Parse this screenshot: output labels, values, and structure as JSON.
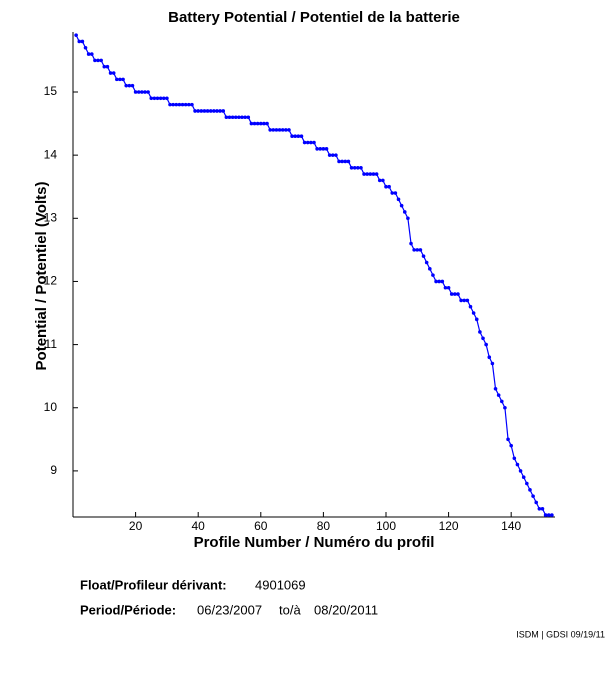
{
  "chart_data": {
    "type": "line",
    "title": "Battery Potential / Potentiel de la batterie",
    "xlabel": "Profile Number / Numéro du profil",
    "ylabel": "Potential / Potentiel (Volts)",
    "xlim": [
      0,
      154
    ],
    "ylim": [
      8.27,
      15.95
    ],
    "xticks": [
      20,
      40,
      60,
      80,
      100,
      120,
      140
    ],
    "yticks": [
      9,
      10,
      11,
      12,
      13,
      14,
      15
    ],
    "grid": false,
    "series": [
      {
        "color": "#0000ff",
        "x": [
          1,
          2,
          3,
          4,
          5,
          6,
          7,
          8,
          9,
          10,
          11,
          12,
          13,
          14,
          15,
          16,
          17,
          18,
          19,
          20,
          21,
          22,
          23,
          24,
          25,
          26,
          27,
          28,
          29,
          30,
          31,
          32,
          33,
          34,
          35,
          36,
          37,
          38,
          39,
          40,
          41,
          42,
          43,
          44,
          45,
          46,
          47,
          48,
          49,
          50,
          51,
          52,
          53,
          54,
          55,
          56,
          57,
          58,
          59,
          60,
          61,
          62,
          63,
          64,
          65,
          66,
          67,
          68,
          69,
          70,
          71,
          72,
          73,
          74,
          75,
          76,
          77,
          78,
          79,
          80,
          81,
          82,
          83,
          84,
          85,
          86,
          87,
          88,
          89,
          90,
          91,
          92,
          93,
          94,
          95,
          96,
          97,
          98,
          99,
          100,
          101,
          102,
          103,
          104,
          105,
          106,
          107,
          108,
          109,
          110,
          111,
          112,
          113,
          114,
          115,
          116,
          117,
          118,
          119,
          120,
          121,
          122,
          123,
          124,
          125,
          126,
          127,
          128,
          129,
          130,
          131,
          132,
          133,
          134,
          135,
          136,
          137,
          138,
          139,
          140,
          141,
          142,
          143,
          144,
          145,
          146,
          147,
          148,
          149,
          150,
          151,
          152,
          153
        ],
        "values": [
          15.9,
          15.8,
          15.8,
          15.7,
          15.6,
          15.6,
          15.5,
          15.5,
          15.5,
          15.4,
          15.4,
          15.3,
          15.3,
          15.2,
          15.2,
          15.2,
          15.1,
          15.1,
          15.1,
          15.0,
          15.0,
          15.0,
          15.0,
          15.0,
          14.9,
          14.9,
          14.9,
          14.9,
          14.9,
          14.9,
          14.8,
          14.8,
          14.8,
          14.8,
          14.8,
          14.8,
          14.8,
          14.8,
          14.7,
          14.7,
          14.7,
          14.7,
          14.7,
          14.7,
          14.7,
          14.7,
          14.7,
          14.7,
          14.6,
          14.6,
          14.6,
          14.6,
          14.6,
          14.6,
          14.6,
          14.6,
          14.5,
          14.5,
          14.5,
          14.5,
          14.5,
          14.5,
          14.4,
          14.4,
          14.4,
          14.4,
          14.4,
          14.4,
          14.4,
          14.3,
          14.3,
          14.3,
          14.3,
          14.2,
          14.2,
          14.2,
          14.2,
          14.1,
          14.1,
          14.1,
          14.1,
          14.0,
          14.0,
          14.0,
          13.9,
          13.9,
          13.9,
          13.9,
          13.8,
          13.8,
          13.8,
          13.8,
          13.7,
          13.7,
          13.7,
          13.7,
          13.7,
          13.6,
          13.6,
          13.5,
          13.5,
          13.4,
          13.4,
          13.3,
          13.2,
          13.1,
          13.0,
          12.6,
          12.5,
          12.5,
          12.5,
          12.4,
          12.3,
          12.2,
          12.1,
          12.0,
          12.0,
          12.0,
          11.9,
          11.9,
          11.8,
          11.8,
          11.8,
          11.7,
          11.7,
          11.7,
          11.6,
          11.5,
          11.4,
          11.2,
          11.1,
          11.0,
          10.8,
          10.7,
          10.3,
          10.2,
          10.1,
          10.0,
          9.5,
          9.4,
          9.2,
          9.1,
          9.0,
          8.9,
          8.8,
          8.7,
          8.6,
          8.5,
          8.4,
          8.4,
          8.3,
          8.3,
          8.3
        ]
      }
    ]
  },
  "info": {
    "float_label": "Float/Profileur dérivant:",
    "float_id": "4901069",
    "period_label": "Period/Période:",
    "start_date": "06/23/2007",
    "to": "to/à",
    "end_date": "08/20/2011",
    "footer": "ISDM | GDSI 09/19/11"
  }
}
